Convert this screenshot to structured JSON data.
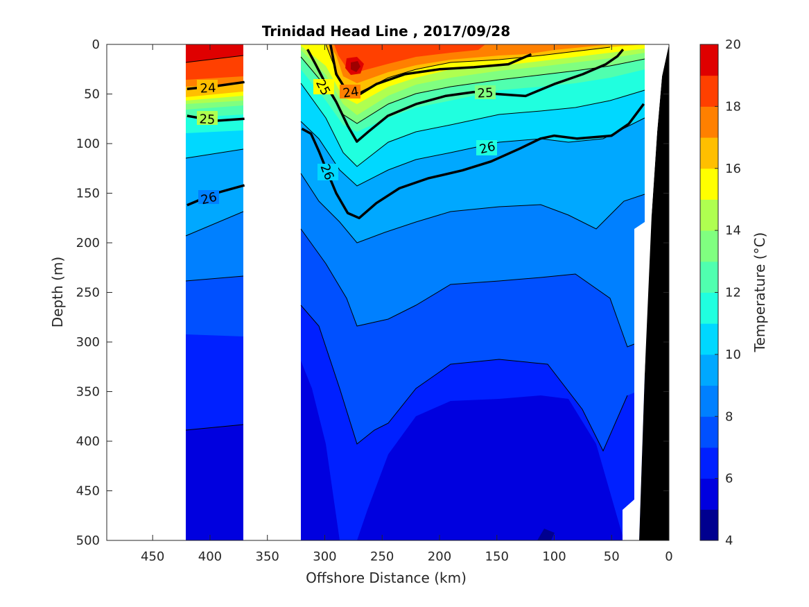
{
  "chart_data": {
    "type": "contour",
    "title": "Trinidad Head Line , 2017/09/28",
    "xlabel": "Offshore Distance (km)",
    "ylabel": "Depth (m)",
    "x_reversed": true,
    "y_reversed": true,
    "xlim": [
      0,
      490
    ],
    "ylim": [
      0,
      500
    ],
    "xticks": [
      450,
      400,
      350,
      300,
      250,
      200,
      150,
      100,
      50,
      0
    ],
    "yticks": [
      0,
      50,
      100,
      150,
      200,
      250,
      300,
      350,
      400,
      450,
      500
    ],
    "colorbar": {
      "label": "Temperature (°C)",
      "range": [
        4,
        20
      ],
      "ticks": [
        4,
        6,
        8,
        10,
        12,
        14,
        16,
        18,
        20
      ],
      "levels": [
        4,
        5,
        6,
        7,
        8,
        9,
        10,
        11,
        12,
        13,
        14,
        15,
        16,
        17,
        18,
        19,
        20
      ],
      "colors": [
        "#00008f",
        "#0000df",
        "#0020ff",
        "#0050ff",
        "#0080ff",
        "#00a8ff",
        "#00d8ff",
        "#20ffdf",
        "#50ffaf",
        "#80ff80",
        "#afff50",
        "#ffff00",
        "#ffbf00",
        "#ff8000",
        "#ff4000",
        "#df0000",
        "#9f0000"
      ]
    },
    "data_columns": [
      {
        "x_range": [
          370,
          420
        ]
      },
      {
        "x_range": [
          20,
          320
        ]
      }
    ],
    "density_contours": [
      {
        "level": 24,
        "label": "24",
        "x": [
          420,
          395,
          370
        ],
        "y": [
          45,
          42,
          38
        ]
      },
      {
        "level": 25,
        "label": "25",
        "x": [
          420,
          395,
          370
        ],
        "y": [
          72,
          77,
          75
        ]
      },
      {
        "level": 26,
        "label": "26",
        "x": [
          420,
          395,
          370
        ],
        "y": [
          162,
          150,
          142
        ]
      },
      {
        "level": 24,
        "label": "24",
        "x": [
          295,
          290,
          282,
          272,
          255,
          230,
          200,
          170,
          140,
          120
        ],
        "y": [
          0,
          30,
          45,
          52,
          40,
          30,
          25,
          23,
          20,
          10
        ]
      },
      {
        "level": 25,
        "label": "25",
        "x": [
          315,
          308,
          300,
          290,
          280,
          272,
          262,
          245,
          220,
          195,
          170,
          150,
          125,
          100,
          75,
          55,
          45,
          40
        ],
        "y": [
          5,
          20,
          38,
          58,
          82,
          98,
          88,
          72,
          60,
          52,
          48,
          50,
          52,
          40,
          30,
          20,
          12,
          5
        ]
      },
      {
        "level": 26,
        "label": "26",
        "x": [
          320,
          312,
          305,
          298,
          290,
          280,
          270,
          255,
          235,
          210,
          180,
          155,
          130,
          112,
          100,
          80,
          50,
          35,
          22
        ],
        "y": [
          85,
          90,
          108,
          128,
          150,
          170,
          175,
          160,
          145,
          135,
          127,
          118,
          105,
          95,
          92,
          95,
          92,
          80,
          60
        ]
      }
    ]
  }
}
